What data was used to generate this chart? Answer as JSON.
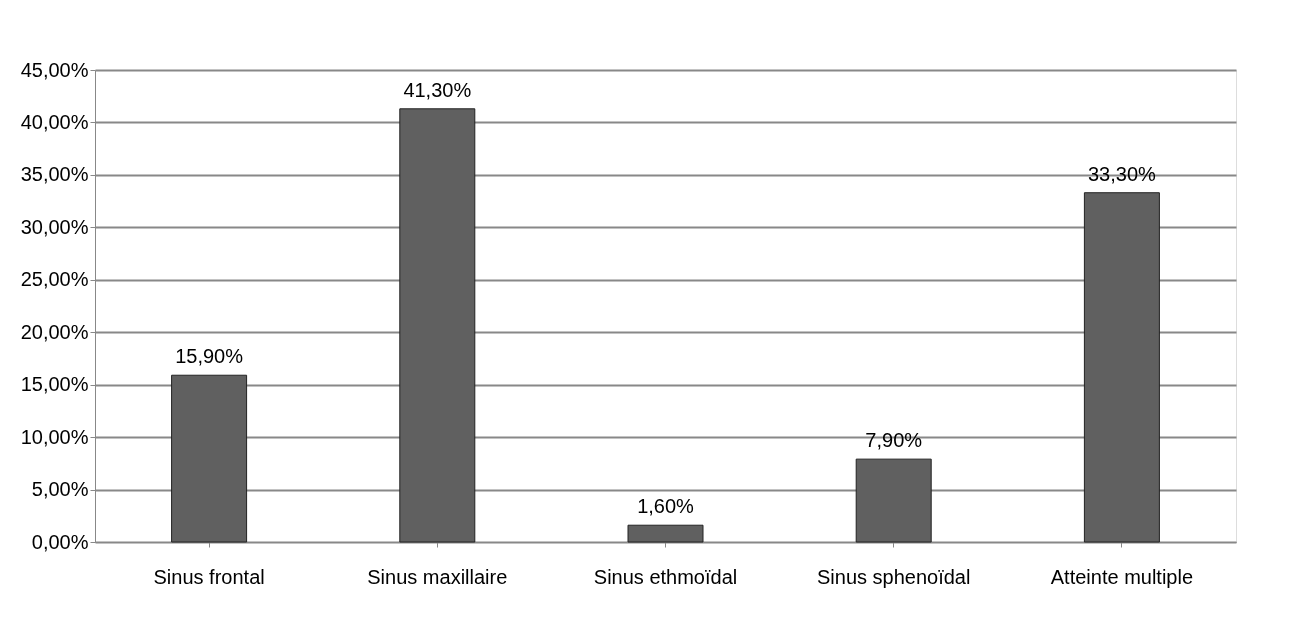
{
  "chart_data": {
    "type": "bar",
    "categories": [
      "Sinus frontal",
      "Sinus maxillaire",
      "Sinus ethmoïdal",
      "Sinus sphenoïdal",
      "Atteinte multiple"
    ],
    "values": [
      15.9,
      41.3,
      1.6,
      7.9,
      33.3
    ],
    "value_labels": [
      "15,90%",
      "41,30%",
      "1,60%",
      "7,90%",
      "33,30%"
    ],
    "color": "#606060",
    "ylim": [
      0,
      45
    ],
    "yticks": [
      {
        "value": 0,
        "label": "0,00%"
      },
      {
        "value": 5,
        "label": "5,00%"
      },
      {
        "value": 10,
        "label": "10,00%"
      },
      {
        "value": 15,
        "label": "15,00%"
      },
      {
        "value": 20,
        "label": "20,00%"
      },
      {
        "value": 25,
        "label": "25,00%"
      },
      {
        "value": 30,
        "label": "30,00%"
      },
      {
        "value": 35,
        "label": "35,00%"
      },
      {
        "value": 40,
        "label": "40,00%"
      },
      {
        "value": 45,
        "label": "45,00%"
      }
    ],
    "grid": "y"
  }
}
